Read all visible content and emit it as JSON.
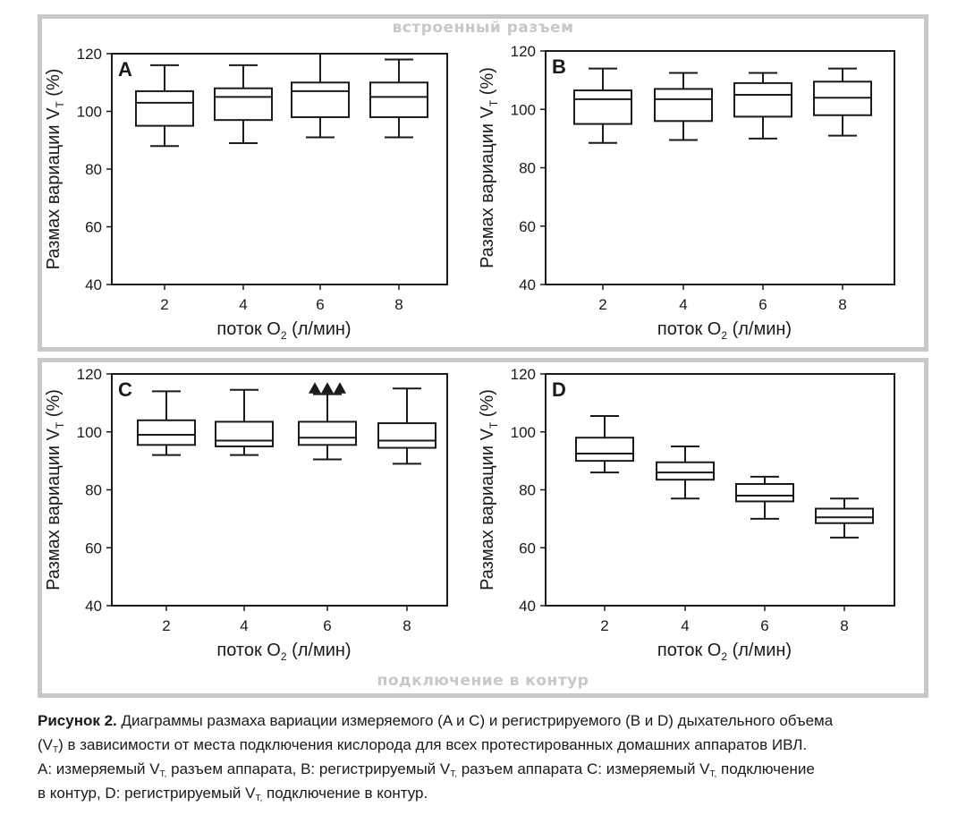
{
  "top_group_label": "встроенный разъем",
  "bottom_group_label": "подключение в контур",
  "chart_data": [
    {
      "type": "box",
      "panel": "A",
      "ylabel": "Размах вариации V",
      "ylabel_sub": "T",
      "ylabel_unit": " (%)",
      "xlabel": "поток O",
      "xlabel_sub": "2",
      "xlabel_unit": " (л/мин)",
      "ylim": [
        40,
        120
      ],
      "yticks": [
        "40",
        "60",
        "80",
        "100",
        "120"
      ],
      "categories": [
        "2",
        "4",
        "6",
        "8"
      ],
      "boxes": [
        {
          "whisker_low": 88,
          "q1": 95,
          "median": 103,
          "q3": 107,
          "whisker_high": 116
        },
        {
          "whisker_low": 89,
          "q1": 97,
          "median": 105,
          "q3": 108,
          "whisker_high": 116
        },
        {
          "whisker_low": 91,
          "q1": 98,
          "median": 107,
          "q3": 110,
          "whisker_high": 120
        },
        {
          "whisker_low": 91,
          "q1": 98,
          "median": 105,
          "q3": 110,
          "whisker_high": 118
        }
      ],
      "outliers": []
    },
    {
      "type": "box",
      "panel": "B",
      "ylabel": "Размах вариации V",
      "ylabel_sub": "T",
      "ylabel_unit": " (%)",
      "xlabel": "поток O",
      "xlabel_sub": "2",
      "xlabel_unit": " (л/мин)",
      "ylim": [
        40,
        120
      ],
      "yticks": [
        "40",
        "60",
        "80",
        "100",
        "120"
      ],
      "categories": [
        "2",
        "4",
        "6",
        "8"
      ],
      "boxes": [
        {
          "whisker_low": 88.5,
          "q1": 95,
          "median": 103.5,
          "q3": 106.5,
          "whisker_high": 114
        },
        {
          "whisker_low": 89.5,
          "q1": 96,
          "median": 103.5,
          "q3": 107,
          "whisker_high": 112.5
        },
        {
          "whisker_low": 90,
          "q1": 97.5,
          "median": 105,
          "q3": 109,
          "whisker_high": 112.5
        },
        {
          "whisker_low": 91,
          "q1": 98,
          "median": 104,
          "q3": 109.5,
          "whisker_high": 114
        }
      ],
      "outliers": []
    },
    {
      "type": "box",
      "panel": "C",
      "ylabel": "Размах вариации V",
      "ylabel_sub": "T",
      "ylabel_unit": " (%)",
      "xlabel": "поток O",
      "xlabel_sub": "2",
      "xlabel_unit": " (л/мин)",
      "ylim": [
        40,
        120
      ],
      "yticks": [
        "40",
        "60",
        "80",
        "100",
        "120"
      ],
      "categories": [
        "2",
        "4",
        "6",
        "8"
      ],
      "boxes": [
        {
          "whisker_low": 92,
          "q1": 95.5,
          "median": 99,
          "q3": 104,
          "whisker_high": 114
        },
        {
          "whisker_low": 92,
          "q1": 95,
          "median": 97,
          "q3": 103.5,
          "whisker_high": 114.5
        },
        {
          "whisker_low": 90.5,
          "q1": 95.5,
          "median": 98,
          "q3": 103.5,
          "whisker_high": 113
        },
        {
          "whisker_low": 89,
          "q1": 94.5,
          "median": 97,
          "q3": 103,
          "whisker_high": 115
        }
      ],
      "outliers": [
        {
          "category": "6",
          "value": 115,
          "offset": -1
        },
        {
          "category": "6",
          "value": 115,
          "offset": 0
        },
        {
          "category": "6",
          "value": 115,
          "offset": 1
        }
      ]
    },
    {
      "type": "box",
      "panel": "D",
      "ylabel": "Размах вариации V",
      "ylabel_sub": "T",
      "ylabel_unit": " (%)",
      "xlabel": "поток O",
      "xlabel_sub": "2",
      "xlabel_unit": " (л/мин)",
      "ylim": [
        40,
        120
      ],
      "yticks": [
        "40",
        "60",
        "80",
        "100",
        "120"
      ],
      "categories": [
        "2",
        "4",
        "6",
        "8"
      ],
      "boxes": [
        {
          "whisker_low": 86,
          "q1": 90,
          "median": 92.5,
          "q3": 98,
          "whisker_high": 105.5
        },
        {
          "whisker_low": 77,
          "q1": 83.5,
          "median": 86,
          "q3": 89.5,
          "whisker_high": 95
        },
        {
          "whisker_low": 70,
          "q1": 76,
          "median": 78,
          "q3": 82,
          "whisker_high": 84.5
        },
        {
          "whisker_low": 63.5,
          "q1": 68.5,
          "median": 70.5,
          "q3": 73.5,
          "whisker_high": 77
        }
      ],
      "outliers": []
    }
  ],
  "caption": {
    "fig_label": "Рисунок 2.",
    "line1": " Диаграммы размаха вариации измеряемого (A и C) и регистрируемого (B и D) дыхательного объема",
    "l2_a": "(V",
    "l2_sub": "T",
    "l2_b": ") в зависимости от места подключения кислорода для всех протестированных домашних аппаратов ИВЛ.",
    "l3_a": "А: измеряемый V",
    "l3_sub1": "T,",
    "l3_b": " разъем аппарата, B: регистрируемый V",
    "l3_sub2": "T,",
    "l3_c": " разъем аппарата C: измеряемый V",
    "l3_sub3": "T,",
    "l3_d": " подключение",
    "l4_a": "в контур, D: регистрируемый V",
    "l4_sub": "T,",
    "l4_b": " подключение в контур."
  },
  "colors": {
    "frame": "#c8c8c8",
    "ink": "#1a1a1a",
    "group_label": "#c8c8c8"
  }
}
